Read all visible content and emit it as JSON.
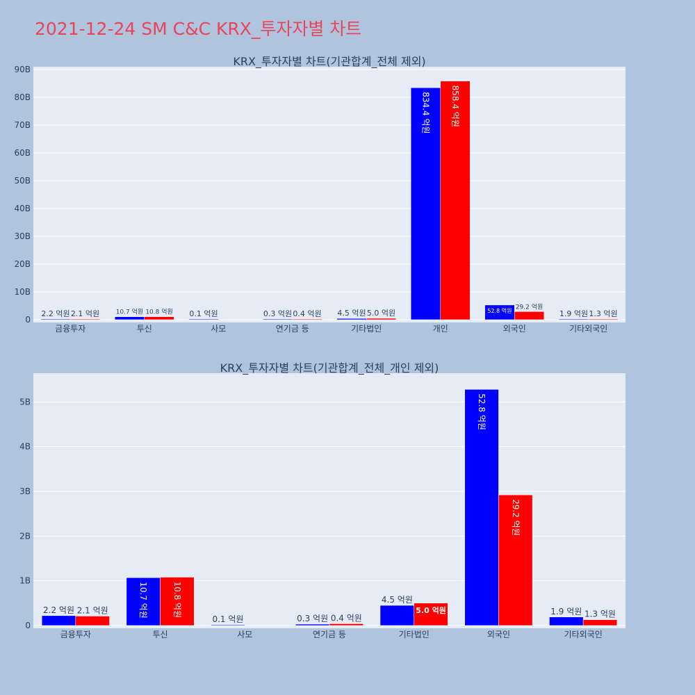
{
  "page_title": "2021-12-24 SM C&C KRX_투자자별 차트",
  "colors": {
    "series1": "#0000ff",
    "series2": "#ff0000",
    "plot_bg": "#e5ecf6",
    "page_bg": "#b0c4de",
    "title": "#e8455a"
  },
  "chart_data": [
    {
      "type": "bar",
      "title": "KRX_투자자별 차트(기관합계_전체 제외)",
      "categories": [
        "금융투자",
        "투신",
        "사모",
        "연기금 등",
        "기타법인",
        "개인",
        "외국인",
        "기타외국인"
      ],
      "series": [
        {
          "name": "series1",
          "values": [
            0.22,
            1.07,
            0.01,
            0.03,
            0.45,
            83.44,
            5.28,
            0.19
          ],
          "labels": [
            "2.2 억원",
            "10.7 억원",
            "0.1 억원",
            "0.3 억원",
            "4.5 억원",
            "834.4 억원",
            "52.8 억원",
            "1.9 억원"
          ]
        },
        {
          "name": "series2",
          "values": [
            0.21,
            1.08,
            0,
            0.04,
            0.5,
            85.84,
            2.92,
            0.13
          ],
          "labels": [
            "2.1 억원",
            "10.8 억원",
            "",
            "0.4 억원",
            "5.0 억원",
            "858.4 억원",
            "29.2 억원",
            "1.3 억원"
          ]
        }
      ],
      "ylim": [
        0,
        90
      ],
      "yticks": [
        0,
        10,
        20,
        30,
        40,
        50,
        60,
        70,
        80,
        90
      ],
      "ytick_labels": [
        "0",
        "10B",
        "20B",
        "30B",
        "40B",
        "50B",
        "60B",
        "70B",
        "80B",
        "90B"
      ]
    },
    {
      "type": "bar",
      "title": "KRX_투자자별 차트(기관합계_전체_개인 제외)",
      "categories": [
        "금융투자",
        "투신",
        "사모",
        "연기금 등",
        "기타법인",
        "외국인",
        "기타외국인"
      ],
      "series": [
        {
          "name": "series1",
          "values": [
            0.22,
            1.07,
            0.01,
            0.03,
            0.45,
            5.28,
            0.19
          ],
          "labels": [
            "2.2 억원",
            "10.7 억원",
            "0.1 억원",
            "0.3 억원",
            "4.5 억원",
            "52.8 억원",
            "1.9 억원"
          ]
        },
        {
          "name": "series2",
          "values": [
            0.21,
            1.08,
            0,
            0.04,
            0.5,
            2.92,
            0.13
          ],
          "labels": [
            "2.1 억원",
            "10.8 억원",
            "",
            "0.4 억원",
            "5.0 억원",
            "29.2 억원",
            "1.3 억원"
          ]
        }
      ],
      "ylim": [
        0,
        5.58
      ],
      "yticks": [
        0,
        1,
        2,
        3,
        4,
        5
      ],
      "ytick_labels": [
        "0",
        "1B",
        "2B",
        "3B",
        "4B",
        "5B"
      ]
    }
  ]
}
